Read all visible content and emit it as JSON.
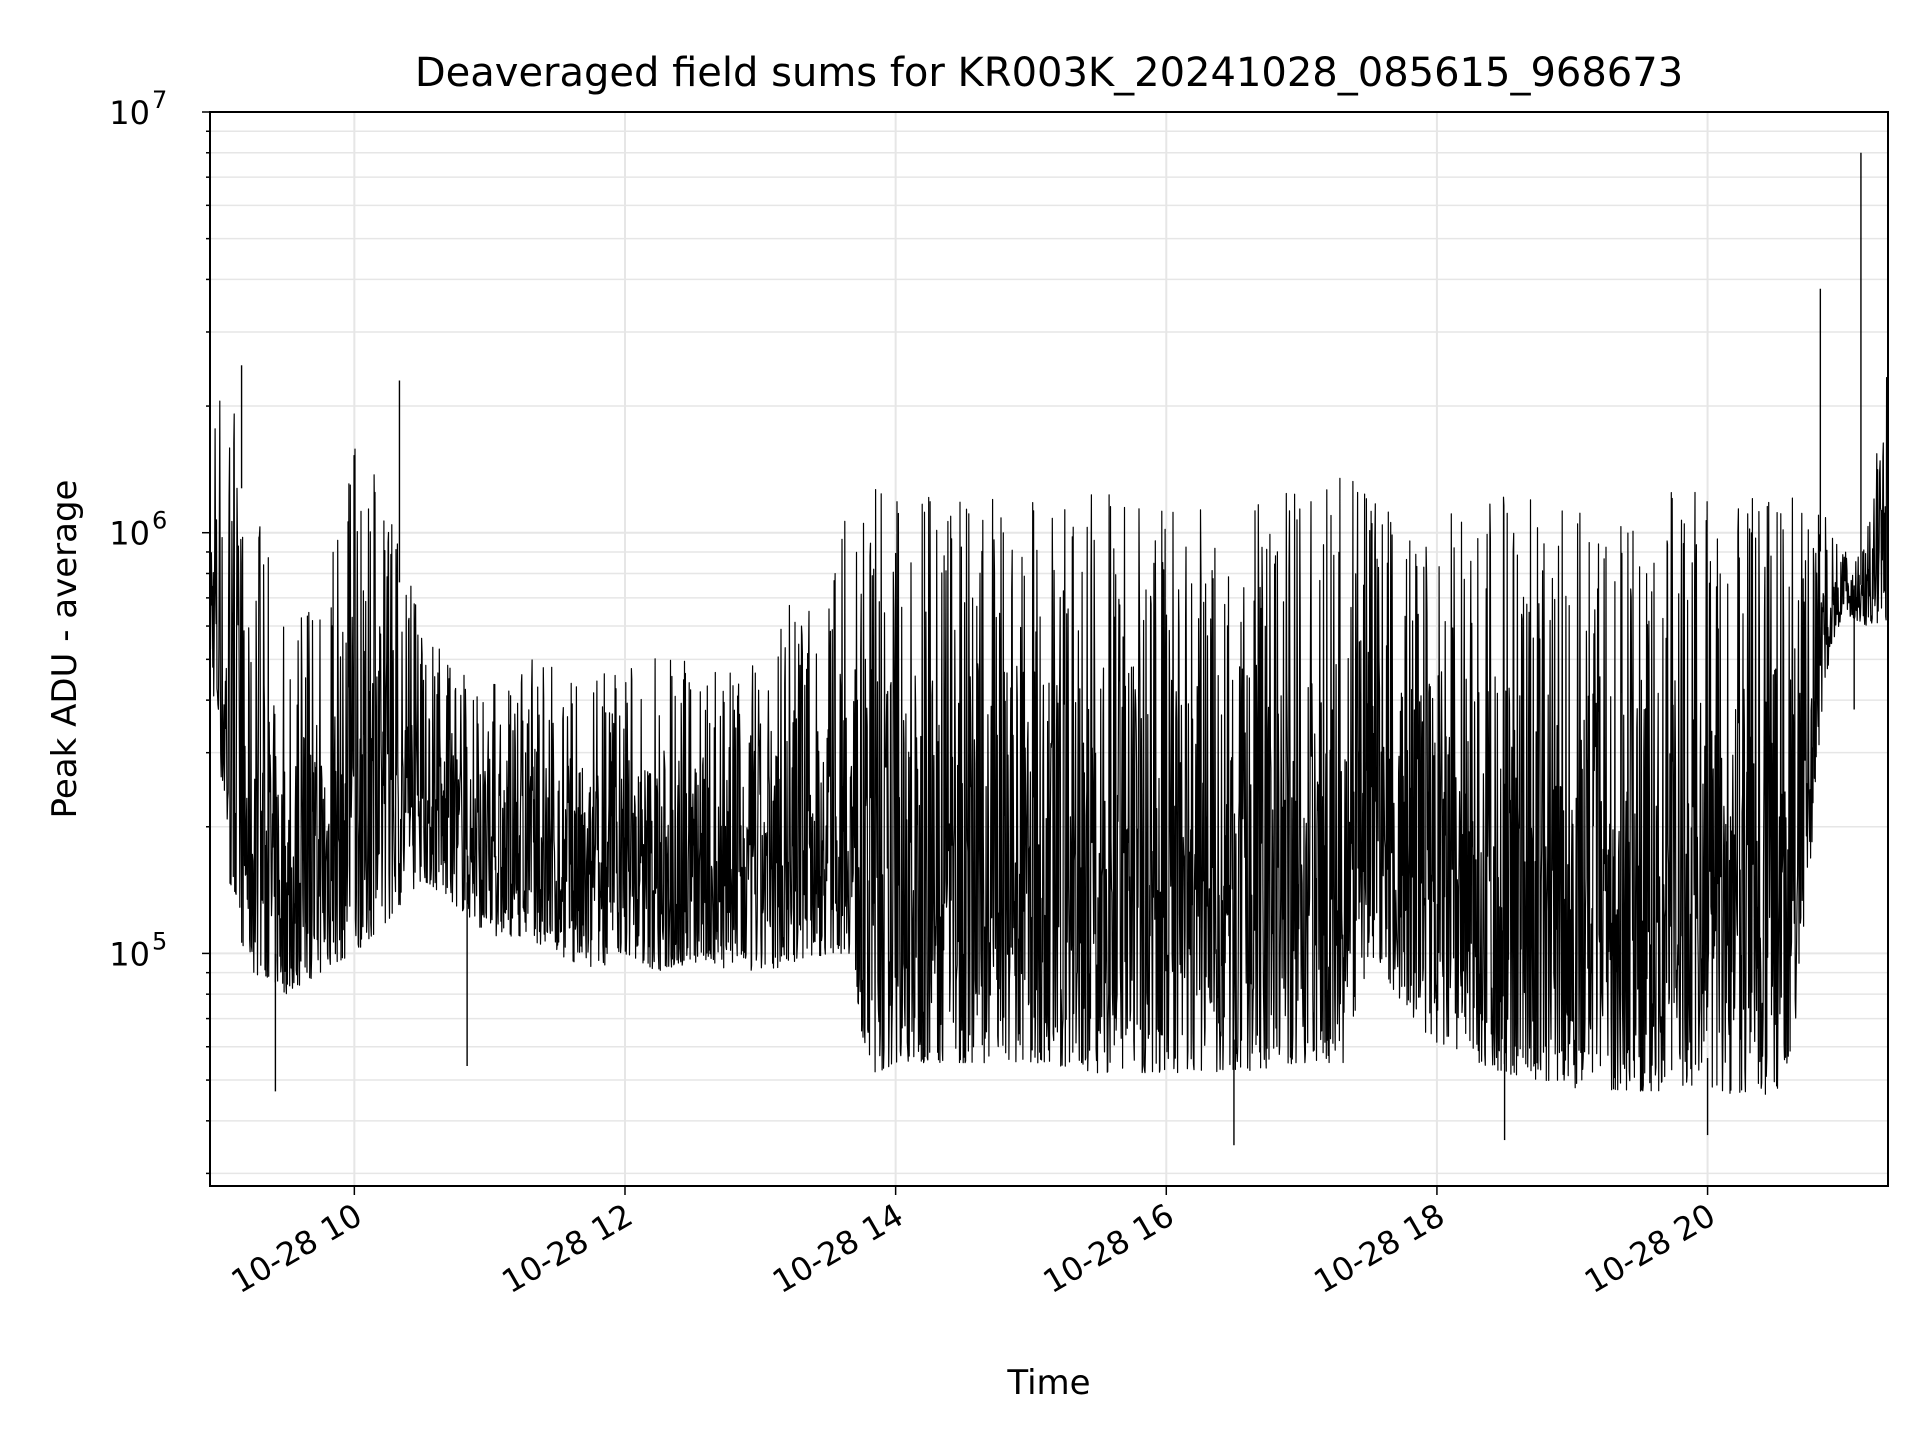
{
  "chart_data": {
    "type": "line",
    "title": "Deaveraged field sums for KR003K_20241028_085615_968673",
    "xlabel": "Time",
    "ylabel": "Peak ADU - average",
    "y_scale": "log",
    "ylim": [
      28000,
      10000000
    ],
    "xlim": [
      "2024-10-28 08:56",
      "2024-10-28 21:20"
    ],
    "grid": true,
    "legend": "none",
    "x_ticks": [
      "10-28 10",
      "10-28 12",
      "10-28 14",
      "10-28 16",
      "10-28 18",
      "10-28 20"
    ],
    "x_tick_times": [
      "2024-10-28 10:00",
      "2024-10-28 12:00",
      "2024-10-28 14:00",
      "2024-10-28 16:00",
      "2024-10-28 18:00",
      "2024-10-28 20:00"
    ],
    "y_ticks": [
      {
        "base": "10",
        "exp": "5",
        "value": 100000
      },
      {
        "base": "10",
        "exp": "6",
        "value": 1000000
      },
      {
        "base": "10",
        "exp": "7",
        "value": 10000000
      }
    ],
    "line_color": "#000000",
    "series": [
      {
        "x": [
          "2024-10-28 08:56",
          "2024-10-28 09:00",
          "2024-10-28 09:06",
          "2024-10-28 09:15",
          "2024-10-28 09:30",
          "2024-10-28 09:45",
          "2024-10-28 10:00",
          "2024-10-28 10:15",
          "2024-10-28 10:30",
          "2024-10-28 10:45",
          "2024-10-28 11:00",
          "2024-10-28 11:15",
          "2024-10-28 11:30",
          "2024-10-28 11:45",
          "2024-10-28 12:00",
          "2024-10-28 12:15",
          "2024-10-28 12:30",
          "2024-10-28 12:45",
          "2024-10-28 13:00",
          "2024-10-28 13:15",
          "2024-10-28 13:30",
          "2024-10-28 13:40",
          "2024-10-28 13:48",
          "2024-10-28 14:00",
          "2024-10-28 14:30",
          "2024-10-28 15:00",
          "2024-10-28 15:30",
          "2024-10-28 16:00",
          "2024-10-28 16:30",
          "2024-10-28 17:00",
          "2024-10-28 17:20",
          "2024-10-28 17:30",
          "2024-10-28 17:45",
          "2024-10-28 18:00",
          "2024-10-28 18:30",
          "2024-10-28 19:00",
          "2024-10-28 19:30",
          "2024-10-28 20:00",
          "2024-10-28 20:20",
          "2024-10-28 20:30",
          "2024-10-28 20:38",
          "2024-10-28 20:45",
          "2024-10-28 20:52",
          "2024-10-28 21:00",
          "2024-10-28 21:10",
          "2024-10-28 21:20"
        ],
        "low": [
          500000,
          300000,
          120000,
          90000,
          80000,
          90000,
          100000,
          120000,
          150000,
          130000,
          110000,
          110000,
          100000,
          90000,
          100000,
          90000,
          95000,
          90000,
          90000,
          95000,
          100000,
          100000,
          50000,
          55000,
          55000,
          55000,
          52000,
          52000,
          52000,
          55000,
          55000,
          100000,
          75000,
          60000,
          52000,
          48000,
          47000,
          47000,
          46000,
          46000,
          60000,
          150000,
          450000,
          650000,
          600000,
          620000
        ],
        "high": [
          2000000,
          2400000,
          2000000,
          1200000,
          600000,
          700000,
          1900000,
          1200000,
          600000,
          500000,
          450000,
          500000,
          500000,
          450000,
          500000,
          550000,
          500000,
          450000,
          650000,
          700000,
          650000,
          1300000,
          1300000,
          1300000,
          1250000,
          1250000,
          1250000,
          1250000,
          1250000,
          1250000,
          1400000,
          1300000,
          1250000,
          1250000,
          1250000,
          1250000,
          1250000,
          1250000,
          1250000,
          1300000,
          1350000,
          1200000,
          1100000,
          900000,
          950000,
          2500000
        ],
        "spikes": [
          {
            "x": "2024-10-28 09:10",
            "y": 2500000
          },
          {
            "x": "2024-10-28 10:20",
            "y": 2300000
          },
          {
            "x": "2024-10-28 20:50",
            "y": 3800000
          },
          {
            "x": "2024-10-28 21:08",
            "y": 8000000
          },
          {
            "x": "2024-10-28 09:25",
            "y": 47000
          },
          {
            "x": "2024-10-28 10:50",
            "y": 54000
          },
          {
            "x": "2024-10-28 16:30",
            "y": 35000
          },
          {
            "x": "2024-10-28 18:30",
            "y": 36000
          },
          {
            "x": "2024-10-28 20:00",
            "y": 37000
          },
          {
            "x": "2024-10-28 21:05",
            "y": 380000
          }
        ]
      }
    ]
  }
}
